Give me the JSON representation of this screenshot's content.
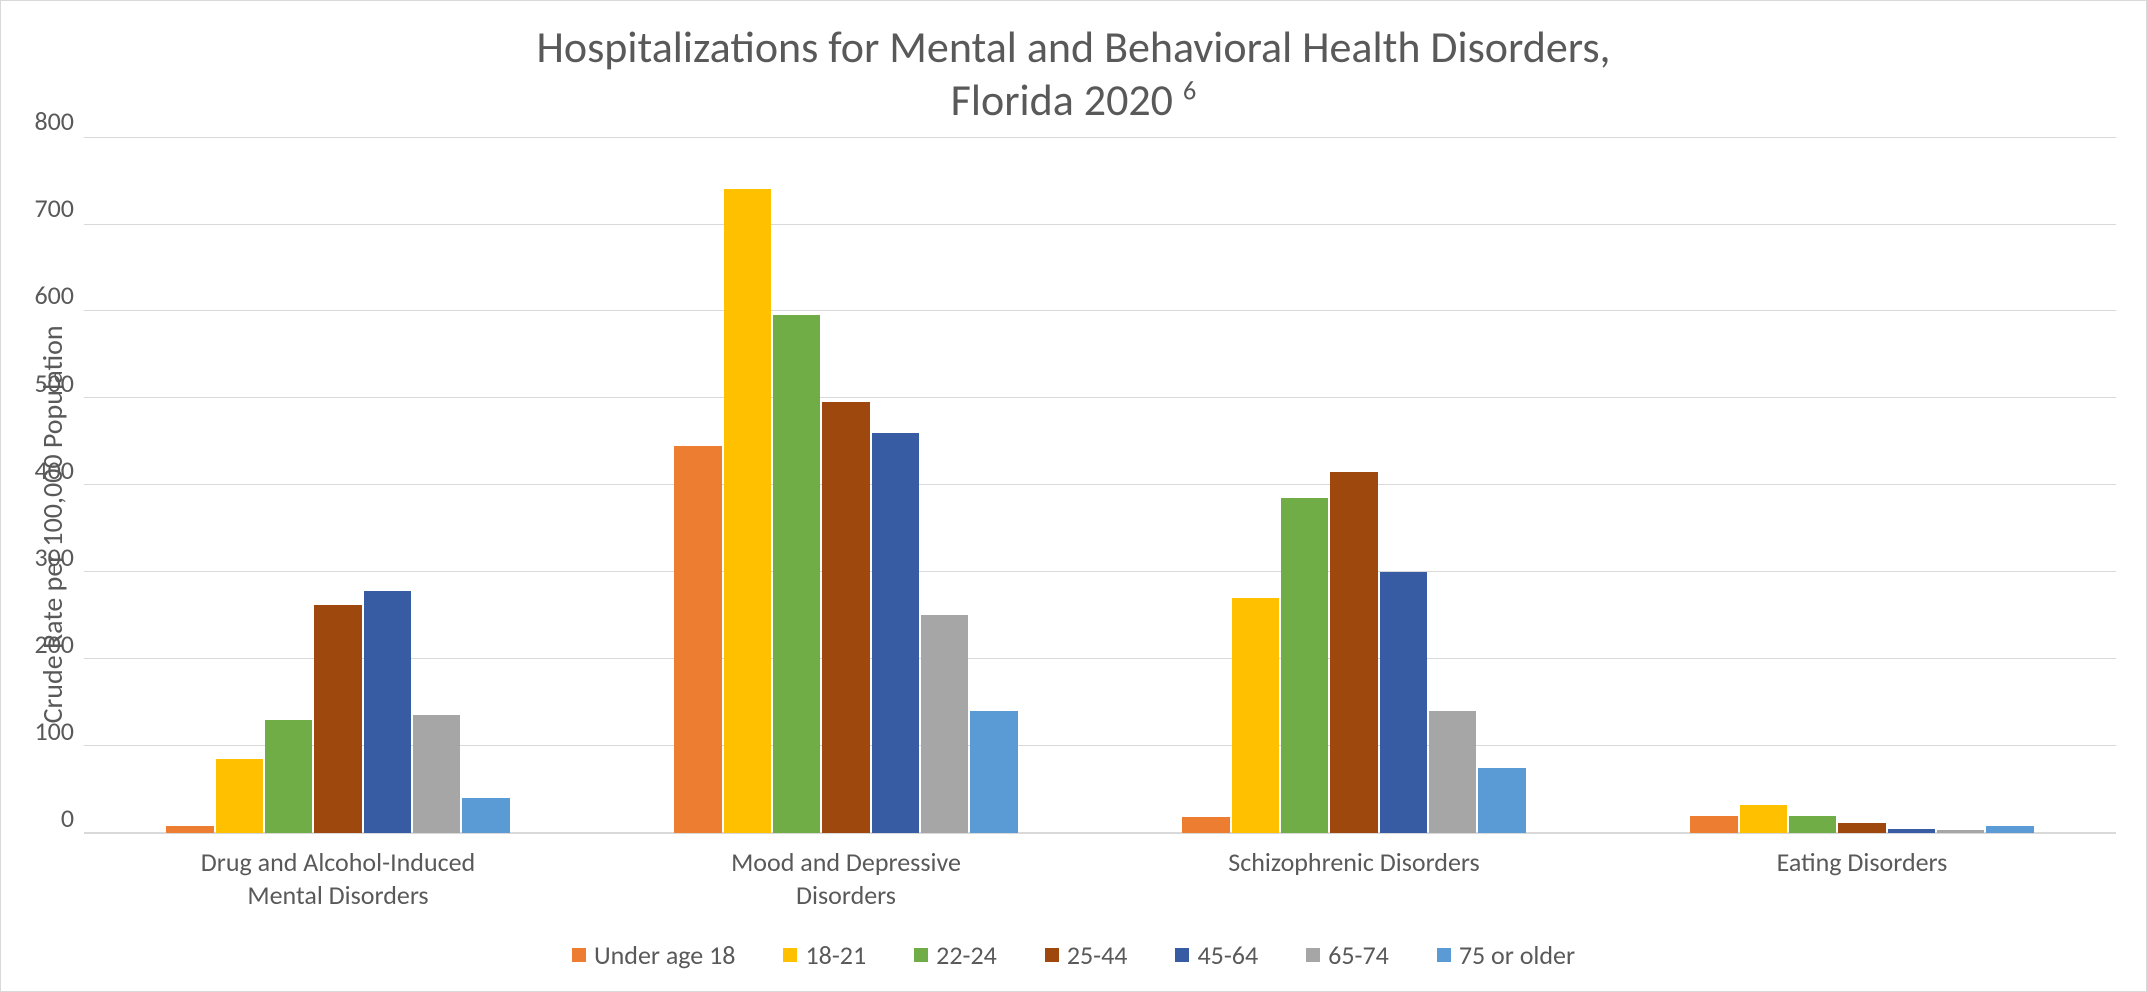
{
  "chart": {
    "type": "bar",
    "title_line1": "Hospitalizations for Mental and Behavioral Health Disorders,",
    "title_line2_pre": "Florida 2020 ",
    "title_line2_sup": "6",
    "title_fontsize": 44,
    "title_color": "#595959",
    "y_axis_label": "Crude Rate per 100,000 Population",
    "axis_label_fontsize": 28,
    "tick_fontsize": 26,
    "xlabel_fontsize": 26,
    "legend_fontsize": 26,
    "ylim": [
      0,
      800
    ],
    "yticks": [
      0,
      100,
      200,
      300,
      400,
      500,
      600,
      700,
      800
    ],
    "background_color": "#ffffff",
    "grid_color": "#d9d9d9",
    "border_color": "#d9d9d9",
    "categories": [
      "Drug and Alcohol-Induced\nMental Disorders",
      "Mood and Depressive\nDisorders",
      "Schizophrenic Disorders",
      "Eating Disorders"
    ],
    "series": [
      {
        "name": "Under age 18",
        "color": "#ed7d31",
        "values": [
          8,
          445,
          18,
          20
        ]
      },
      {
        "name": "18-21",
        "color": "#ffc000",
        "values": [
          85,
          740,
          270,
          32
        ]
      },
      {
        "name": "22-24",
        "color": "#70ad47",
        "values": [
          130,
          595,
          385,
          20
        ]
      },
      {
        "name": "25-44",
        "color": "#9e480e",
        "values": [
          262,
          495,
          415,
          12
        ]
      },
      {
        "name": "45-64",
        "color": "#375ca4",
        "values": [
          278,
          460,
          300,
          5
        ]
      },
      {
        "name": "65-74",
        "color": "#a6a6a6",
        "values": [
          135,
          250,
          140,
          3
        ]
      },
      {
        "name": "75 or older",
        "color": "#5b9bd5",
        "values": [
          40,
          140,
          75,
          8
        ]
      }
    ]
  }
}
